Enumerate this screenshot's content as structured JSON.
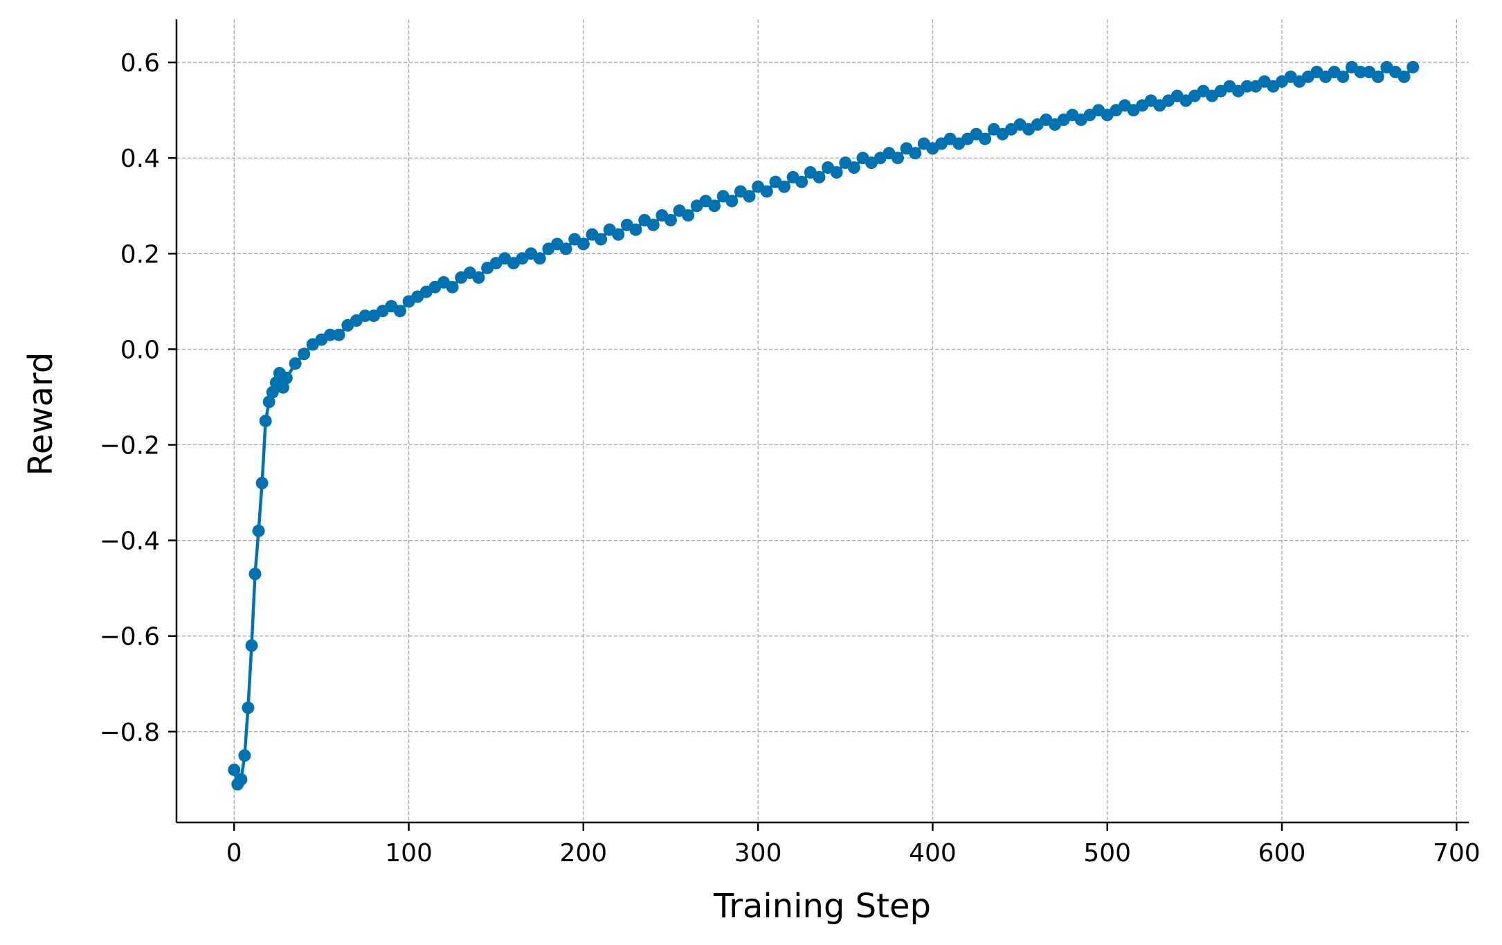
{
  "chart_data": {
    "type": "line",
    "title": "",
    "xlabel": "Training Step",
    "ylabel": "Reward",
    "xlim": [
      -33,
      707
    ],
    "ylim": [
      -0.99,
      0.69
    ],
    "xticks": [
      0,
      100,
      200,
      300,
      400,
      500,
      600,
      700
    ],
    "yticks": [
      -0.8,
      -0.6,
      -0.4,
      -0.2,
      0.0,
      0.2,
      0.4,
      0.6
    ],
    "xtick_labels": [
      "0",
      "100",
      "200",
      "300",
      "400",
      "500",
      "600",
      "700"
    ],
    "ytick_labels": [
      "−0.8",
      "−0.6",
      "−0.4",
      "−0.2",
      "0.0",
      "0.2",
      "0.4",
      "0.6"
    ],
    "grid": true,
    "legend": false,
    "series": [
      {
        "color": "#0072b2",
        "marker": "circle",
        "x": [
          0,
          2,
          4,
          6,
          8,
          10,
          12,
          14,
          16,
          18,
          20,
          22,
          24,
          26,
          28,
          30,
          35,
          40,
          45,
          50,
          55,
          60,
          65,
          70,
          75,
          80,
          85,
          90,
          95,
          100,
          105,
          110,
          115,
          120,
          125,
          130,
          135,
          140,
          145,
          150,
          155,
          160,
          165,
          170,
          175,
          180,
          185,
          190,
          195,
          200,
          205,
          210,
          215,
          220,
          225,
          230,
          235,
          240,
          245,
          250,
          255,
          260,
          265,
          270,
          275,
          280,
          285,
          290,
          295,
          300,
          305,
          310,
          315,
          320,
          325,
          330,
          335,
          340,
          345,
          350,
          355,
          360,
          365,
          370,
          375,
          380,
          385,
          390,
          395,
          400,
          405,
          410,
          415,
          420,
          425,
          430,
          435,
          440,
          445,
          450,
          455,
          460,
          465,
          470,
          475,
          480,
          485,
          490,
          495,
          500,
          505,
          510,
          515,
          520,
          525,
          530,
          535,
          540,
          545,
          550,
          555,
          560,
          565,
          570,
          575,
          580,
          585,
          590,
          595,
          600,
          605,
          610,
          615,
          620,
          625,
          630,
          635,
          640,
          645,
          650,
          655,
          660,
          665,
          670,
          675
        ],
        "y": [
          -0.88,
          -0.91,
          -0.9,
          -0.85,
          -0.75,
          -0.62,
          -0.47,
          -0.38,
          -0.28,
          -0.15,
          -0.11,
          -0.09,
          -0.07,
          -0.05,
          -0.08,
          -0.06,
          -0.03,
          -0.01,
          0.01,
          0.02,
          0.03,
          0.03,
          0.05,
          0.06,
          0.07,
          0.07,
          0.08,
          0.09,
          0.08,
          0.1,
          0.11,
          0.12,
          0.13,
          0.14,
          0.13,
          0.15,
          0.16,
          0.15,
          0.17,
          0.18,
          0.19,
          0.18,
          0.19,
          0.2,
          0.19,
          0.21,
          0.22,
          0.21,
          0.23,
          0.22,
          0.24,
          0.23,
          0.25,
          0.24,
          0.26,
          0.25,
          0.27,
          0.26,
          0.28,
          0.27,
          0.29,
          0.28,
          0.3,
          0.31,
          0.3,
          0.32,
          0.31,
          0.33,
          0.32,
          0.34,
          0.33,
          0.35,
          0.34,
          0.36,
          0.35,
          0.37,
          0.36,
          0.38,
          0.37,
          0.39,
          0.38,
          0.4,
          0.39,
          0.4,
          0.41,
          0.4,
          0.42,
          0.41,
          0.43,
          0.42,
          0.43,
          0.44,
          0.43,
          0.44,
          0.45,
          0.44,
          0.46,
          0.45,
          0.46,
          0.47,
          0.46,
          0.47,
          0.48,
          0.47,
          0.48,
          0.49,
          0.48,
          0.49,
          0.5,
          0.49,
          0.5,
          0.51,
          0.5,
          0.51,
          0.52,
          0.51,
          0.52,
          0.53,
          0.52,
          0.53,
          0.54,
          0.53,
          0.54,
          0.55,
          0.54,
          0.55,
          0.55,
          0.56,
          0.55,
          0.56,
          0.57,
          0.56,
          0.57,
          0.58,
          0.57,
          0.58,
          0.57,
          0.59,
          0.58,
          0.58,
          0.57,
          0.59,
          0.58,
          0.57,
          0.59
        ]
      }
    ]
  }
}
